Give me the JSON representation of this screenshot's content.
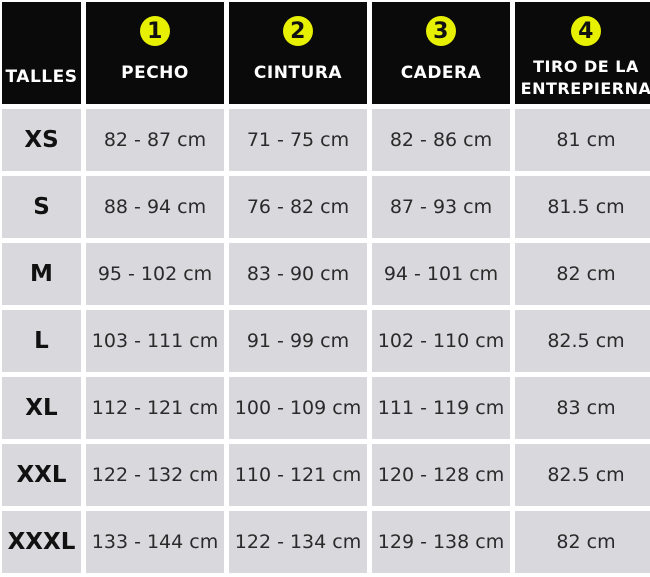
{
  "header": {
    "size_label": "TALLES",
    "columns": [
      {
        "number": "1",
        "label": "PECHO"
      },
      {
        "number": "2",
        "label": "CINTURA"
      },
      {
        "number": "3",
        "label": "CADERA"
      },
      {
        "number": "4",
        "label": "TIRO DE LA ENTREPIERNA"
      }
    ]
  },
  "rows": [
    {
      "size": "XS",
      "values": [
        "82 - 87 cm",
        "71 - 75 cm",
        "82 - 86 cm",
        "81 cm"
      ]
    },
    {
      "size": "S",
      "values": [
        "88 - 94 cm",
        "76 - 82 cm",
        "87 - 93 cm",
        "81.5 cm"
      ]
    },
    {
      "size": "M",
      "values": [
        "95 - 102 cm",
        "83 - 90 cm",
        "94 - 101 cm",
        "82 cm"
      ]
    },
    {
      "size": "L",
      "values": [
        "103 - 111 cm",
        "91 - 99 cm",
        "102 - 110 cm",
        "82.5 cm"
      ]
    },
    {
      "size": "XL",
      "values": [
        "112 - 121 cm",
        "100 - 109 cm",
        "111 - 119 cm",
        "83 cm"
      ]
    },
    {
      "size": "XXL",
      "values": [
        "122 - 132 cm",
        "110 - 121 cm",
        "120 - 128 cm",
        "82.5 cm"
      ]
    },
    {
      "size": "XXXL",
      "values": [
        "133 - 144 cm",
        "122 - 134 cm",
        "129 - 138 cm",
        "82 cm"
      ]
    }
  ],
  "colors": {
    "header_bg": "#0a0a0a",
    "badge": "#e6f000",
    "cell_bg": "#d9d9dd"
  }
}
